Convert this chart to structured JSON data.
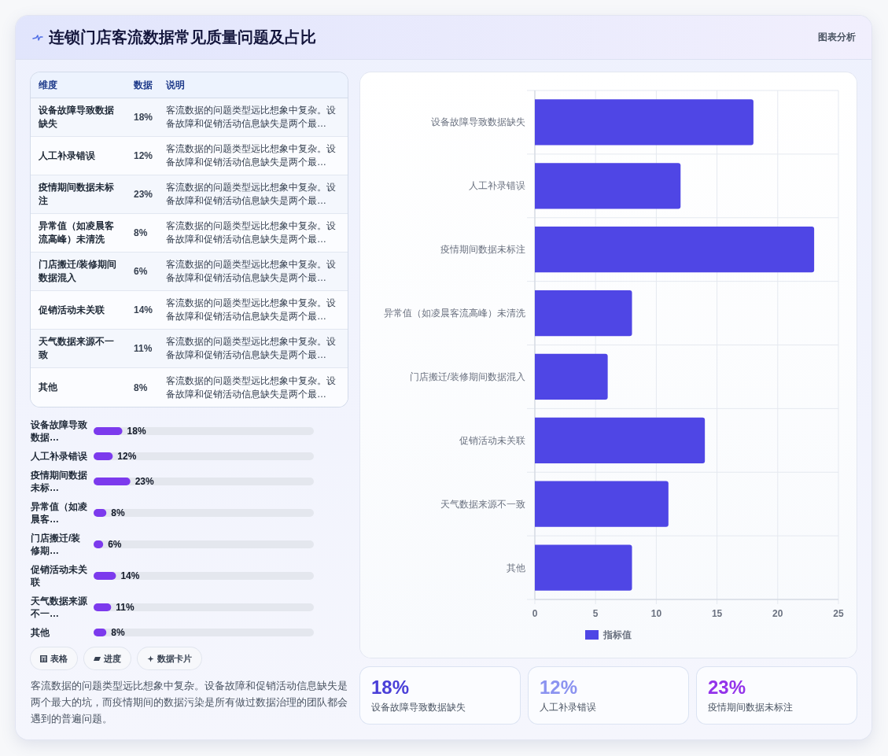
{
  "chart_data": [
    {
      "type": "other",
      "title": "连锁门店客流数据常见质量问题及占比",
      "categories": [
        "设备故障导致数据缺失",
        "人工补录错误",
        "疫情期间数据未标注",
        "异常值（如凌晨客流高峰）未清洗",
        "门店搬迁/装修期间数据混入",
        "促销活动未关联",
        "天气数据来源不一致",
        "其他"
      ],
      "value_labels": [
        "18%",
        "12%",
        "23%",
        "8%",
        "6%",
        "14%",
        "11%",
        "8%"
      ],
      "annotations": [
        "图表分析",
        "维度",
        "数据",
        "说明",
        "客流数据的问题类型远比想象中复杂。设备故障和促销活动信息缺失是两个最…",
        "客流数据的问题类型远比想象中复杂。设备故障和促销活动信息缺失是两个最…",
        "客流数据的问题类型远比想象中复杂。设备故障和促销活动信息缺失是两个最…",
        "客流数据的问题类型远比想象中复杂。设备故障和促销活动信息缺失是两个最…",
        "客流数据的问题类型远比想象中复杂。设备故障和促销活动信息缺失是两个最…",
        "客流数据的问题类型远比想象中复杂。设备故障和促销活动信息缺失是两个最…",
        "客流数据的问题类型远比想象中复杂。设备故障和促销活动信息缺失是两个最…",
        "客流数据的问题类型远比想象中复杂。设备故障和促销活动信息缺失是两个最…"
      ]
    },
    {
      "type": "bar",
      "orientation": "horizontal",
      "categories": [
        "设备故障导致数据缺失",
        "人工补录错误",
        "疫情期间数据未标注",
        "异常值（如凌晨客流高峰）未清洗",
        "门店搬迁/装修期间数据混入",
        "促销活动未关联",
        "天气数据来源不一致",
        "其他"
      ],
      "series": [
        {
          "name": "指标值",
          "color": "#4f46e5",
          "values": [
            18,
            12,
            23,
            8,
            6,
            14,
            11,
            8
          ]
        }
      ],
      "xlim": [
        0,
        25
      ],
      "xticks": [
        0,
        5,
        10,
        15,
        20,
        25
      ],
      "grid": true,
      "legend": "bottom"
    },
    {
      "type": "bar",
      "orientation": "horizontal",
      "categories": [
        "设备故障导致数据…",
        "人工补录错误",
        "疫情期间数据未标…",
        "异常值（如凌晨客…",
        "门店搬迁/装修期…",
        "促销活动未关联",
        "天气数据来源不一…",
        "其他"
      ],
      "series": [
        {
          "color": "#7c3aed",
          "values": [
            18,
            12,
            23,
            8,
            6,
            14,
            11,
            8
          ],
          "value_labels": [
            "18%",
            "12%",
            "23%",
            "8%",
            "6%",
            "14%",
            "11%",
            "8%"
          ]
        }
      ],
      "tick_labels": "y",
      "annotations": [
        "表格",
        "进度",
        "数据卡片",
        "客流数据的问题类型远比想象中复杂。设备故障和促销活动信息缺失是两个最大的坑，而疫情期间的数据污染是所有做过数据治理的团队都会遇到的普遍问题。"
      ]
    },
    {
      "type": "other",
      "categories": [
        "设备故障导致数据缺失",
        "人工补录错误",
        "疫情期间数据未标注"
      ],
      "value_labels": [
        "18%",
        "12%",
        "23%"
      ]
    }
  ]
}
